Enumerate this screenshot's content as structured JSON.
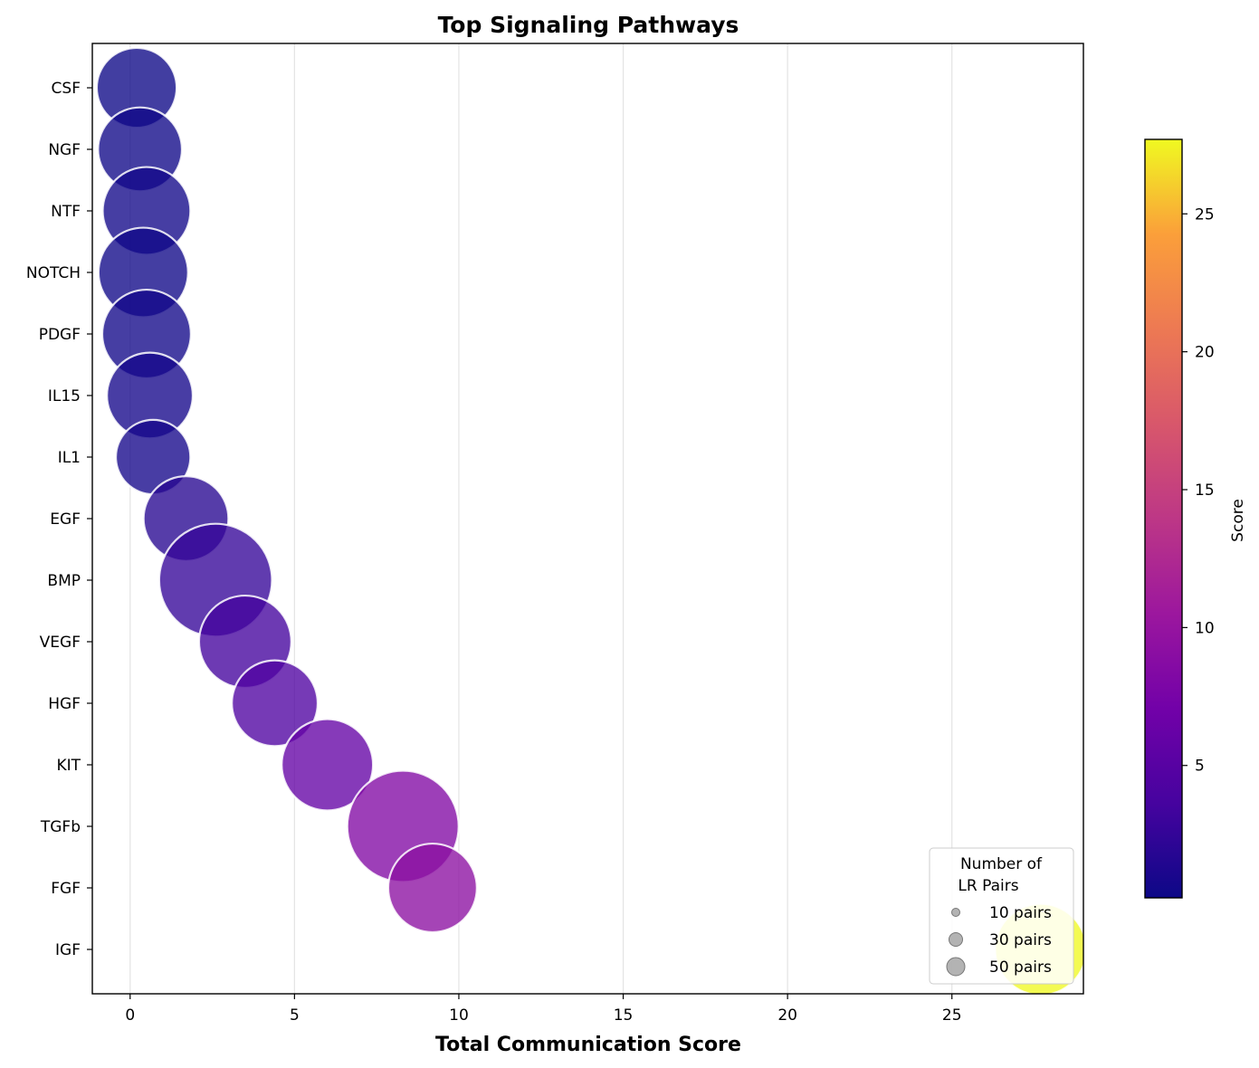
{
  "chart_data": {
    "type": "scatter",
    "title": "Top Signaling Pathways",
    "xlabel": "Total Communication Score",
    "ylabel": "",
    "xlim": [
      -1.15,
      29.0
    ],
    "xticks": [
      0,
      5,
      10,
      15,
      20,
      25
    ],
    "grid": "vertical",
    "categories": [
      "CSF",
      "NGF",
      "NTF",
      "NOTCH",
      "PDGF",
      "IL15",
      "IL1",
      "EGF",
      "BMP",
      "VEGF",
      "HGF",
      "KIT",
      "TGFb",
      "FGF",
      "IGF"
    ],
    "x": [
      0.2,
      0.3,
      0.5,
      0.4,
      0.5,
      0.6,
      0.7,
      1.7,
      2.6,
      3.5,
      4.4,
      6.0,
      8.3,
      9.2,
      27.7
    ],
    "lr_pairs": [
      36,
      40,
      44,
      46,
      45,
      42,
      31,
      41,
      75,
      49,
      42,
      48,
      73,
      45,
      48
    ],
    "colorbar": {
      "label": "Score",
      "ticks": [
        5,
        10,
        15,
        20,
        25
      ],
      "range": [
        0.2,
        27.7
      ],
      "colormap": "plasma"
    },
    "legend": {
      "title_line1": "Number of",
      "title_line2": "LR Pairs",
      "entries": [
        {
          "label": "10 pairs",
          "pairs": 10
        },
        {
          "label": "30 pairs",
          "pairs": 30
        },
        {
          "label": "50 pairs",
          "pairs": 50
        }
      ],
      "placement": "lower-right"
    }
  }
}
